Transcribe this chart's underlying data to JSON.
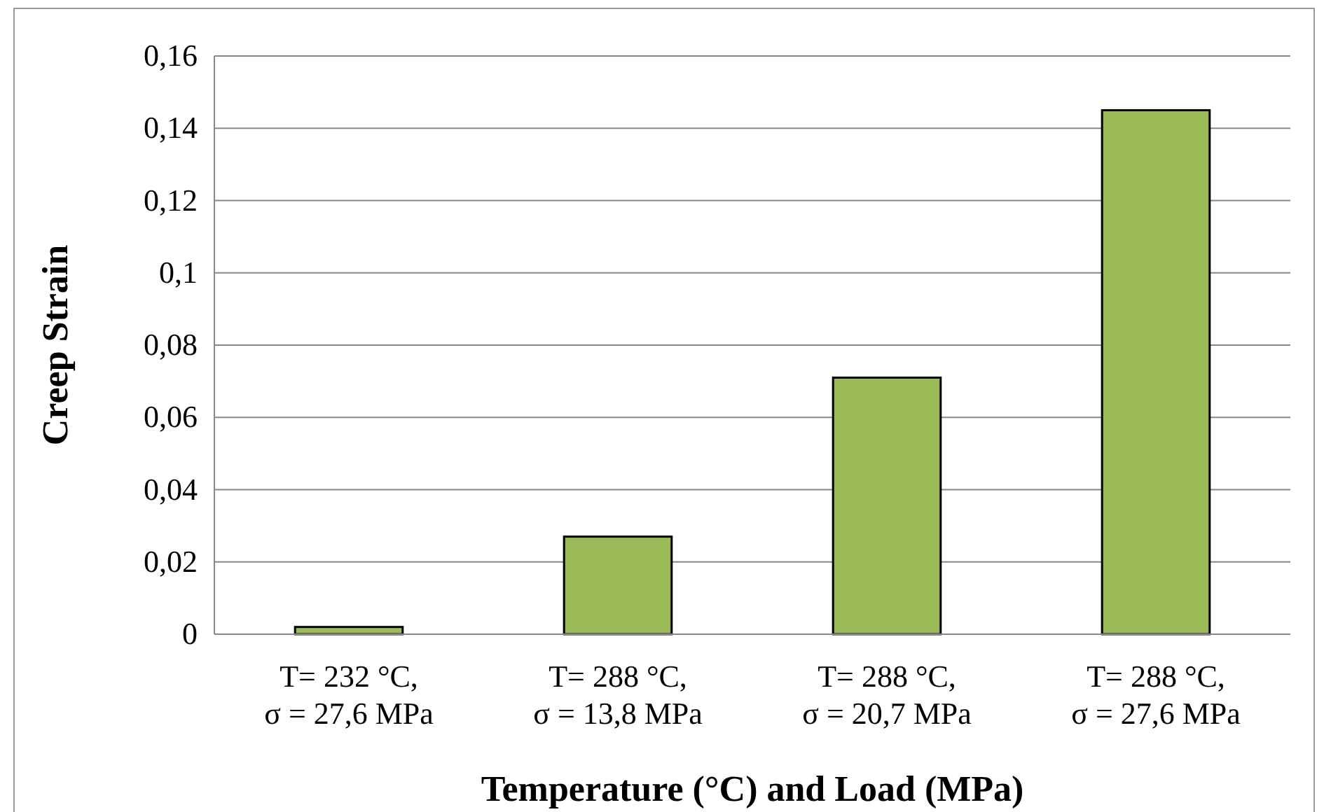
{
  "chart_data": {
    "type": "bar",
    "ylabel": "Creep Strain",
    "xlabel": "Temperature (°C) and Load (MPa)",
    "categories": [
      "T= 232 °C,\nσ = 27,6 MPa",
      "T= 288 °C,\nσ = 13,8 MPa",
      "T= 288 °C,\nσ = 20,7 MPa",
      "T= 288 °C,\nσ = 27,6 MPa"
    ],
    "values": [
      0.002,
      0.027,
      0.071,
      0.145
    ],
    "color": "#9bbb59",
    "ylim": [
      0,
      0.16
    ],
    "yticks": [
      {
        "value": 0,
        "label": "0"
      },
      {
        "value": 0.02,
        "label": "0,02"
      },
      {
        "value": 0.04,
        "label": "0,04"
      },
      {
        "value": 0.06,
        "label": "0,06"
      },
      {
        "value": 0.08,
        "label": "0,08"
      },
      {
        "value": 0.1,
        "label": "0,1"
      },
      {
        "value": 0.12,
        "label": "0,12"
      },
      {
        "value": 0.14,
        "label": "0,14"
      },
      {
        "value": 0.16,
        "label": "0,16"
      }
    ],
    "grid": true
  }
}
